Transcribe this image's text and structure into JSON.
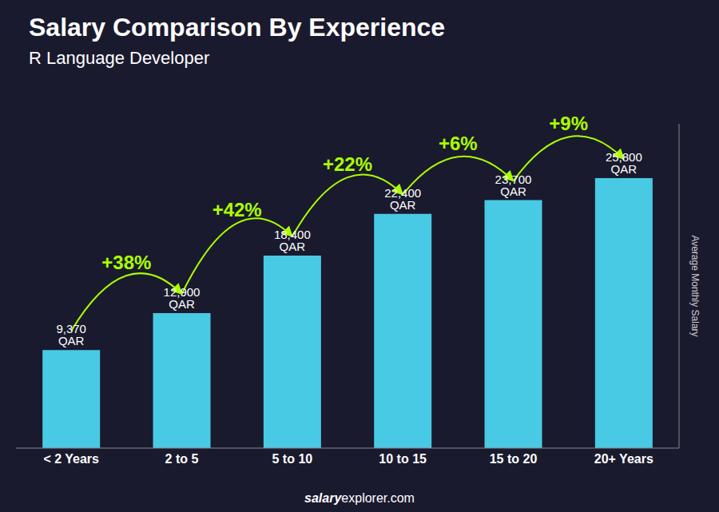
{
  "chart_data": {
    "type": "bar",
    "title": "Salary Comparison By Experience",
    "subtitle": "R Language Developer",
    "y_label": "Average Monthly Salary",
    "categories": [
      "< 2 Years",
      "2 to 5",
      "5 to 10",
      "10 to 15",
      "15 to 20",
      "20+ Years"
    ],
    "values": [
      9370,
      12900,
      18400,
      22400,
      23700,
      25800
    ],
    "value_labels": [
      "9,370 QAR",
      "12,900 QAR",
      "18,400 QAR",
      "22,400 QAR",
      "23,700 QAR",
      "25,800 QAR"
    ],
    "data_labels": true,
    "color": "#48cae4",
    "ylim": [
      0,
      31000
    ],
    "tick_labels": "x",
    "grid": false,
    "annotations": [
      {
        "text": "+38%",
        "from": "< 2 Years",
        "to": "2 to 5",
        "color": "#aaff00"
      },
      {
        "text": "+42%",
        "from": "2 to 5",
        "to": "5 to 10",
        "color": "#aaff00"
      },
      {
        "text": "+22%",
        "from": "5 to 10",
        "to": "10 to 15",
        "color": "#aaff00"
      },
      {
        "text": "+6%",
        "from": "10 to 15",
        "to": "15 to 20",
        "color": "#aaff00"
      },
      {
        "text": "+9%",
        "from": "15 to 20",
        "to": "20+ Years",
        "color": "#aaff00"
      }
    ],
    "footer": [
      "salary",
      "explorer.com"
    ]
  }
}
